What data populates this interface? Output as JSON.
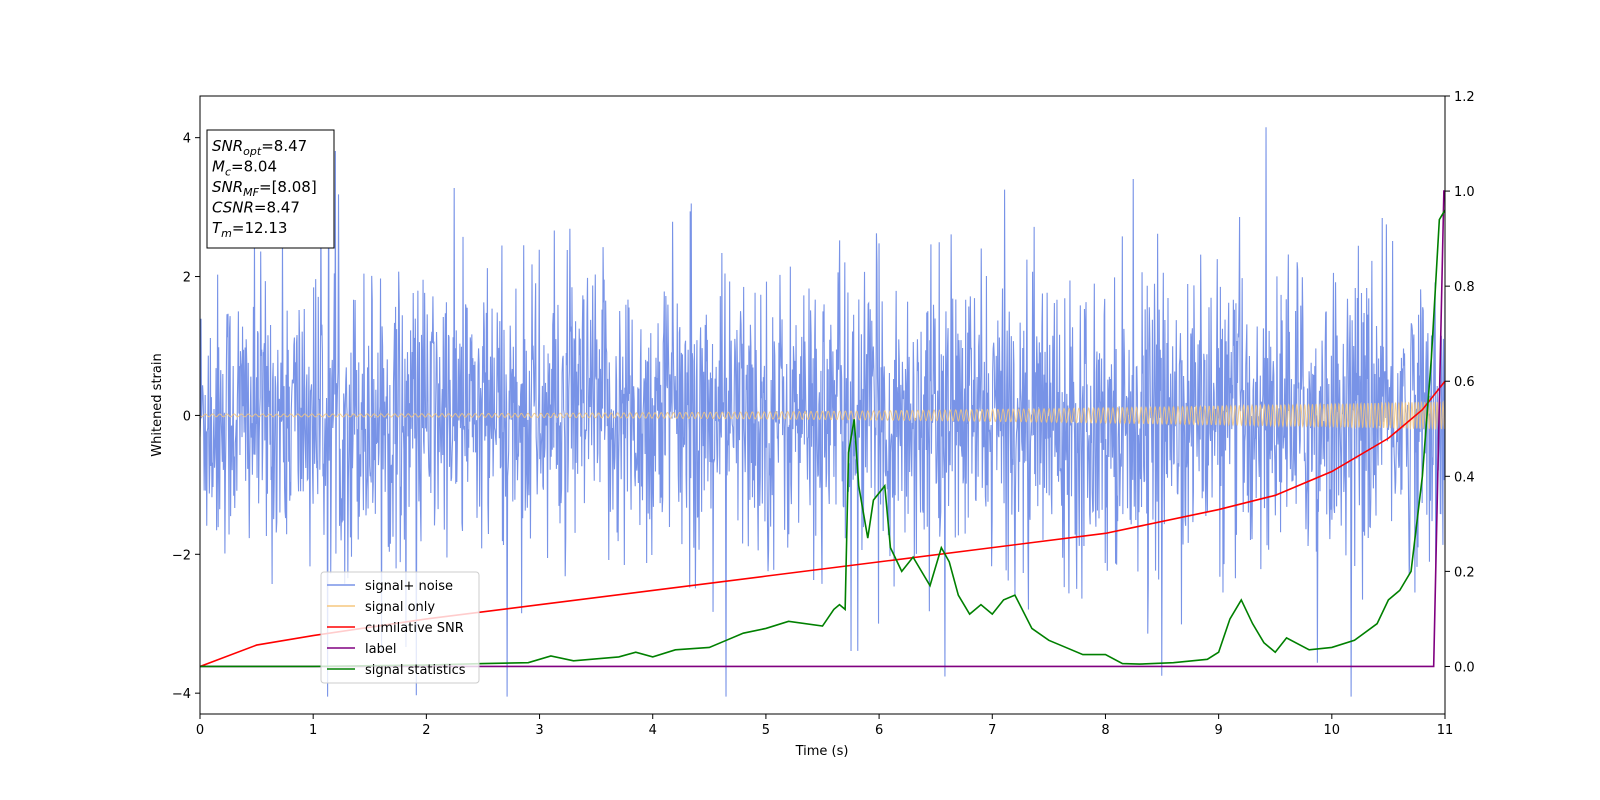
{
  "chart_data": {
    "type": "line",
    "xlabel": "Time (s)",
    "ylabel": "Whitened strain",
    "xlim": [
      0,
      11
    ],
    "ylim": [
      -4.3,
      4.6
    ],
    "y2lim": [
      -0.1,
      1.2
    ],
    "x_ticks": [
      "0",
      "1",
      "2",
      "3",
      "4",
      "5",
      "6",
      "7",
      "8",
      "9",
      "10",
      "11"
    ],
    "y_ticks": [
      "4",
      "2",
      "0",
      "−2",
      "−4"
    ],
    "y2_ticks": [
      "1.2",
      "1.0",
      "0.8",
      "0.6",
      "0.4",
      "0.2",
      "0.0"
    ],
    "legend_position": "lower-left",
    "info_box": {
      "lines": [
        {
          "sym": "SNR",
          "sub": "opt",
          "rest": "=8.47"
        },
        {
          "sym": "M",
          "sub": "c",
          "rest": "=8.04"
        },
        {
          "sym": "SNR",
          "sub": "MF",
          "rest": "=[8.08]"
        },
        {
          "sym": "CSNR",
          "sub": "",
          "rest": "=8.47"
        },
        {
          "sym": "T",
          "sub": "m",
          "rest": "=12.13"
        }
      ]
    },
    "series": [
      {
        "name": "signal+ noise",
        "color": "#7893e7",
        "axis": "left",
        "style": "noise band, approx ±2.2 with spikes up to 4.18 and down to −4.07"
      },
      {
        "name": "signal only",
        "color": "#f5c77e",
        "axis": "left",
        "style": "chirp, amplitude growing from ~0.02 to ~0.2"
      },
      {
        "name": "cumilative SNR",
        "color": "#ff0000",
        "axis": "right",
        "x": [
          0,
          0.5,
          1,
          2,
          3,
          4,
          5,
          6,
          7,
          8,
          9,
          9.5,
          10,
          10.5,
          10.8,
          11
        ],
        "values": [
          0.0,
          0.045,
          0.065,
          0.1,
          0.13,
          0.16,
          0.19,
          0.22,
          0.25,
          0.28,
          0.33,
          0.36,
          0.41,
          0.48,
          0.54,
          0.6
        ]
      },
      {
        "name": "label",
        "color": "#800080",
        "axis": "right",
        "x": [
          0,
          10.9,
          10.99,
          11
        ],
        "values": [
          0,
          0,
          1.0,
          1.0
        ]
      },
      {
        "name": "signal statistics",
        "color": "#008000",
        "axis": "right",
        "x": [
          0,
          1,
          2,
          2.5,
          2.9,
          3.1,
          3.3,
          3.7,
          3.85,
          4.0,
          4.2,
          4.5,
          4.65,
          4.8,
          5.0,
          5.2,
          5.5,
          5.6,
          5.65,
          5.7,
          5.73,
          5.78,
          5.82,
          5.9,
          5.95,
          6.05,
          6.1,
          6.2,
          6.3,
          6.45,
          6.55,
          6.62,
          6.7,
          6.8,
          6.9,
          7.0,
          7.1,
          7.2,
          7.35,
          7.5,
          7.6,
          7.8,
          8.0,
          8.15,
          8.3,
          8.6,
          8.9,
          9.0,
          9.1,
          9.2,
          9.3,
          9.4,
          9.5,
          9.6,
          9.8,
          10.0,
          10.2,
          10.4,
          10.5,
          10.6,
          10.7,
          10.8,
          10.88,
          10.95,
          11.0
        ],
        "values": [
          0.0,
          0.0,
          0.003,
          0.006,
          0.008,
          0.022,
          0.012,
          0.02,
          0.03,
          0.02,
          0.035,
          0.04,
          0.055,
          0.07,
          0.08,
          0.095,
          0.085,
          0.12,
          0.13,
          0.12,
          0.45,
          0.52,
          0.38,
          0.27,
          0.35,
          0.38,
          0.25,
          0.2,
          0.23,
          0.17,
          0.25,
          0.22,
          0.15,
          0.11,
          0.13,
          0.11,
          0.14,
          0.15,
          0.08,
          0.055,
          0.045,
          0.025,
          0.025,
          0.006,
          0.005,
          0.008,
          0.015,
          0.03,
          0.1,
          0.14,
          0.09,
          0.05,
          0.03,
          0.06,
          0.035,
          0.04,
          0.055,
          0.09,
          0.14,
          0.16,
          0.2,
          0.4,
          0.65,
          0.94,
          0.96
        ]
      }
    ]
  }
}
